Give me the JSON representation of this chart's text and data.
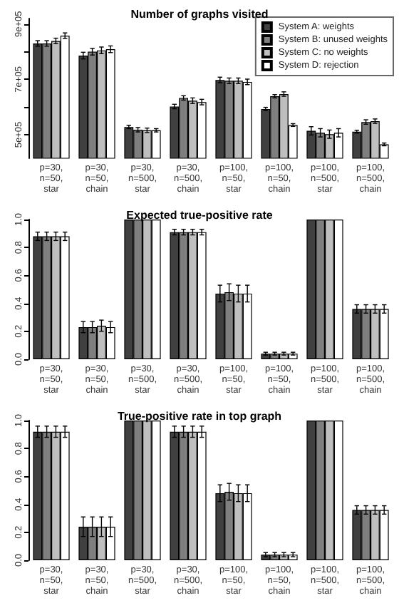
{
  "chart_data": [
    {
      "type": "bar",
      "title": "Number of graphs visited",
      "categories": [
        "p=30,\nn=50,\nstar",
        "p=30,\nn=50,\nchain",
        "p=30,\nn=500,\nstar",
        "p=30,\nn=500,\nchain",
        "p=100,\nn=50,\nstar",
        "p=100,\nn=50,\nchain",
        "p=100,\nn=500,\nstar",
        "p=100,\nn=500,\nchain"
      ],
      "ylim": [
        415000,
        920000
      ],
      "yticks": [
        {
          "value": 500000,
          "label": "5e+05"
        },
        {
          "value": 600000,
          "label": null
        },
        {
          "value": 700000,
          "label": "7e+05"
        },
        {
          "value": 800000,
          "label": null
        },
        {
          "value": 900000,
          "label": "9e+05"
        }
      ],
      "legend": "top right",
      "grid": false,
      "series": [
        {
          "name": "System A: weights",
          "color": "#404040",
          "values": [
            830000,
            786000,
            528000,
            602000,
            698000,
            593000,
            514000,
            511000
          ],
          "errors": [
            10000,
            12000,
            6000,
            8000,
            10000,
            6000,
            15000,
            5000
          ]
        },
        {
          "name": "System B: unused weights",
          "color": "#7f7f7f",
          "values": [
            830000,
            800000,
            518000,
            633000,
            695000,
            639000,
            507000,
            546000
          ],
          "errors": [
            10000,
            12000,
            8000,
            8000,
            10000,
            6000,
            15000,
            8000
          ]
        },
        {
          "name": "System C: no weights",
          "color": "#bfbfbf",
          "values": [
            839000,
            805000,
            516000,
            623000,
            695000,
            647000,
            502000,
            549000
          ],
          "errors": [
            10000,
            12000,
            8000,
            10000,
            10000,
            8000,
            15000,
            8000
          ]
        },
        {
          "name": "System D: rejection",
          "color": "#ffffff",
          "values": [
            858000,
            809000,
            516000,
            618000,
            691000,
            535000,
            507000,
            465000
          ],
          "errors": [
            10000,
            12000,
            6000,
            10000,
            10000,
            5000,
            15000,
            5000
          ]
        }
      ]
    },
    {
      "type": "bar",
      "title": "Expected true-positive rate",
      "categories": [
        "p=30,\nn=50,\nstar",
        "p=30,\nn=50,\nchain",
        "p=30,\nn=500,\nstar",
        "p=30,\nn=500,\nchain",
        "p=100,\nn=50,\nstar",
        "p=100,\nn=50,\nchain",
        "p=100,\nn=500,\nstar",
        "p=100,\nn=500,\nchain"
      ],
      "ylim": [
        0,
        1
      ],
      "yticks": [
        {
          "value": 0,
          "label": "0.0"
        },
        {
          "value": 0.2,
          "label": "0.2"
        },
        {
          "value": 0.4,
          "label": "0.4"
        },
        {
          "value": 0.6,
          "label": "0.6"
        },
        {
          "value": 0.8,
          "label": "0.8"
        },
        {
          "value": 1,
          "label": "1.0"
        }
      ],
      "grid": false,
      "series": [
        {
          "color": "#404040",
          "values": [
            0.88,
            0.23,
            1.0,
            0.91,
            0.47,
            0.04,
            1.0,
            0.36
          ],
          "errors": [
            0.03,
            0.04,
            null,
            0.02,
            0.06,
            0.01,
            null,
            0.03
          ]
        },
        {
          "color": "#7f7f7f",
          "values": [
            0.88,
            0.23,
            1.0,
            0.91,
            0.48,
            0.04,
            1.0,
            0.36
          ],
          "errors": [
            0.03,
            0.04,
            null,
            0.02,
            0.06,
            0.01,
            null,
            0.03
          ]
        },
        {
          "color": "#bfbfbf",
          "values": [
            0.88,
            0.24,
            1.0,
            0.91,
            0.47,
            0.04,
            1.0,
            0.36
          ],
          "errors": [
            0.03,
            0.04,
            null,
            0.02,
            0.06,
            0.01,
            null,
            0.03
          ]
        },
        {
          "color": "#ffffff",
          "values": [
            0.88,
            0.23,
            1.0,
            0.91,
            0.47,
            0.04,
            1.0,
            0.36
          ],
          "errors": [
            0.03,
            0.04,
            null,
            0.02,
            0.06,
            0.01,
            null,
            0.03
          ]
        }
      ]
    },
    {
      "type": "bar",
      "title": "True-positive rate in top graph",
      "categories": [
        "p=30,\nn=50,\nstar",
        "p=30,\nn=50,\nchain",
        "p=30,\nn=500,\nstar",
        "p=30,\nn=500,\nchain",
        "p=100,\nn=50,\nstar",
        "p=100,\nn=50,\nchain",
        "p=100,\nn=500,\nstar",
        "p=100,\nn=500,\nchain"
      ],
      "ylim": [
        0,
        1
      ],
      "yticks": [
        {
          "value": 0,
          "label": "0.0"
        },
        {
          "value": 0.2,
          "label": "0.2"
        },
        {
          "value": 0.4,
          "label": "0.4"
        },
        {
          "value": 0.6,
          "label": "0.6"
        },
        {
          "value": 0.8,
          "label": "0.8"
        },
        {
          "value": 1,
          "label": "1.0"
        }
      ],
      "grid": false,
      "series": [
        {
          "color": "#404040",
          "values": [
            0.92,
            0.24,
            1.0,
            0.92,
            0.48,
            0.04,
            1.0,
            0.36
          ],
          "errors": [
            0.04,
            0.07,
            null,
            0.04,
            0.06,
            0.015,
            null,
            0.03
          ]
        },
        {
          "color": "#7f7f7f",
          "values": [
            0.92,
            0.24,
            1.0,
            0.92,
            0.49,
            0.04,
            1.0,
            0.36
          ],
          "errors": [
            0.04,
            0.07,
            null,
            0.04,
            0.06,
            0.015,
            null,
            0.03
          ]
        },
        {
          "color": "#bfbfbf",
          "values": [
            0.92,
            0.24,
            1.0,
            0.92,
            0.48,
            0.04,
            1.0,
            0.36
          ],
          "errors": [
            0.04,
            0.07,
            null,
            0.04,
            0.06,
            0.015,
            null,
            0.03
          ]
        },
        {
          "color": "#ffffff",
          "values": [
            0.92,
            0.24,
            1.0,
            0.92,
            0.48,
            0.04,
            1.0,
            0.36
          ],
          "errors": [
            0.04,
            0.07,
            null,
            0.04,
            0.06,
            0.015,
            null,
            0.03
          ]
        }
      ]
    }
  ]
}
